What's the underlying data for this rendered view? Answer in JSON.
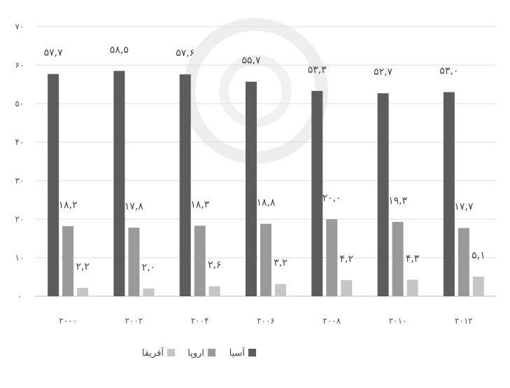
{
  "chart_data": {
    "type": "bar",
    "categories": [
      "2000",
      "2002",
      "2004",
      "2006",
      "2008",
      "2010",
      "2012"
    ],
    "category_labels": [
      "۲۰۰۰",
      "۲۰۰۲",
      "۲۰۰۴",
      "۲۰۰۶",
      "۲۰۰۸",
      "۲۰۱۰",
      "۲۰۱۲"
    ],
    "series": [
      {
        "name": "آسیا",
        "color": "#5c5c5c",
        "values": [
          57.7,
          58.5,
          57.6,
          55.7,
          53.3,
          52.7,
          53.0
        ],
        "labels": [
          "۵۷,۷",
          "۵۸,۵",
          "۵۷,۶",
          "۵۵,۷",
          "۵۳,۳",
          "۵۲,۷",
          "۵۳,۰"
        ]
      },
      {
        "name": "اروپا",
        "color": "#9a9a9a",
        "values": [
          18.2,
          17.8,
          18.3,
          18.8,
          20.0,
          19.3,
          17.7
        ],
        "labels": [
          "۱۸,۲",
          "۱۷,۸",
          "۱۸,۳",
          "۱۸,۸",
          "۲۰,۰",
          "۱۹,۳",
          "۱۷,۷"
        ]
      },
      {
        "name": "آفریقا",
        "color": "#c6c6c6",
        "values": [
          2.2,
          2.0,
          2.6,
          3.2,
          4.2,
          4.3,
          5.1
        ],
        "labels": [
          "۲,۲",
          "۲,۰",
          "۲,۶",
          "۳,۲",
          "۴,۲",
          "۴,۳",
          "۵,۱"
        ]
      }
    ],
    "ylim": [
      0,
      70
    ],
    "y_ticks": [
      0,
      10,
      20,
      30,
      40,
      50,
      60,
      70
    ],
    "y_tick_labels": [
      "۰",
      "۱۰",
      "۲۰",
      "۳۰",
      "۴۰",
      "۵۰",
      "۶۰",
      "۷۰"
    ],
    "grid": true,
    "legend_position": "bottom"
  }
}
